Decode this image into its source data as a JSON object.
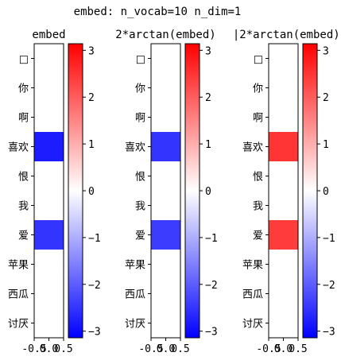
{
  "suptitle": "embed: n_vocab=10 n_dim=1",
  "chart_data": [
    {
      "type": "heatmap",
      "title": "embed",
      "rows": [
        "□",
        "你",
        "啊",
        "喜欢",
        "恨",
        "我",
        "爱",
        "苹果",
        "西瓜",
        "讨厌"
      ],
      "columns": [
        "0"
      ],
      "values": [
        0,
        0,
        0,
        -2.8,
        0,
        0,
        -2.5,
        0,
        0,
        0
      ],
      "x_ticks": [
        "-0.5",
        "0.0",
        "0.5"
      ],
      "colormap": "bwr",
      "vmin": -3.1416,
      "vmax": 3.1416,
      "colorbar_ticks": [
        "3",
        "2",
        "1",
        "0",
        "−1",
        "−2",
        "−3"
      ]
    },
    {
      "type": "heatmap",
      "title": "2*arctan(embed)",
      "rows": [
        "□",
        "你",
        "啊",
        "喜欢",
        "恨",
        "我",
        "爱",
        "苹果",
        "西瓜",
        "讨厌"
      ],
      "columns": [
        "0"
      ],
      "values": [
        0,
        0,
        0,
        -2.5,
        0,
        0,
        -2.4,
        0,
        0,
        0
      ],
      "x_ticks": [
        "-0.5",
        "0.0",
        "0.5"
      ],
      "colormap": "bwr",
      "vmin": -3.1416,
      "vmax": 3.1416,
      "colorbar_ticks": [
        "3",
        "2",
        "1",
        "0",
        "−1",
        "−2",
        "−3"
      ]
    },
    {
      "type": "heatmap",
      "title": "|2*arctan(embed)|",
      "rows": [
        "□",
        "你",
        "啊",
        "喜欢",
        "恨",
        "我",
        "爱",
        "苹果",
        "西瓜",
        "讨厌"
      ],
      "columns": [
        "0"
      ],
      "values": [
        0,
        0,
        0,
        2.5,
        0,
        0,
        2.4,
        0,
        0,
        0
      ],
      "x_ticks": [
        "-0.5",
        "0.0",
        "0.5"
      ],
      "colormap": "bwr",
      "vmin": -3.1416,
      "vmax": 3.1416,
      "colorbar_ticks": [
        "3",
        "2",
        "1",
        "0",
        "−1",
        "−2",
        "−3"
      ]
    }
  ]
}
